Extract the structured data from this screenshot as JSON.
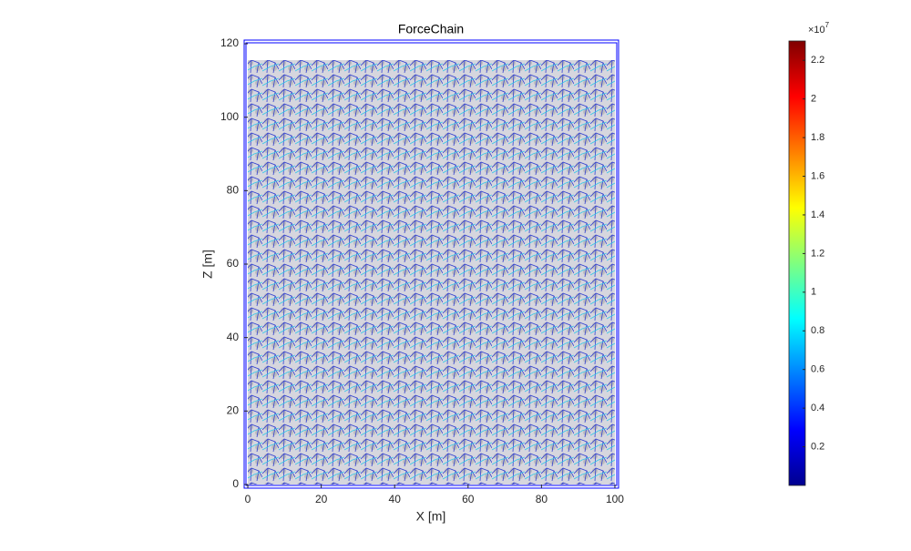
{
  "chart_data": {
    "type": "network",
    "title": "ForceChain",
    "x_label": "X [m]",
    "y_label": "Z [m]",
    "xlim": [
      -1,
      101
    ],
    "xticks": [
      0,
      20,
      40,
      60,
      80,
      100
    ],
    "ylim": [
      -1,
      121
    ],
    "yticks": [
      0,
      20,
      40,
      60,
      80,
      100,
      120
    ],
    "frame_color": "#0000ff",
    "colorbar": {
      "colormap": "jet",
      "lim": [
        0,
        2.3
      ],
      "ticks": [
        0.2,
        0.4,
        0.6,
        0.8,
        1,
        1.2,
        1.4,
        1.6,
        1.8,
        2,
        2.2
      ],
      "multiplier_base": "×10",
      "multiplier_exponent": "7"
    }
  }
}
